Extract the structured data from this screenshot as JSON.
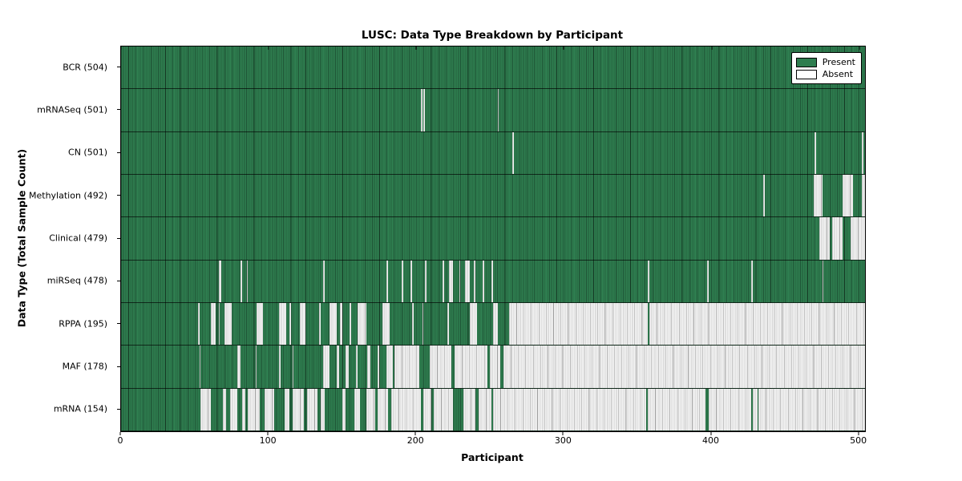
{
  "figure": {
    "title": "LUSC: Data Type Breakdown by Participant",
    "xlabel": "Participant",
    "ylabel": "Data Type (Total Sample Count)"
  },
  "legend": {
    "present_label": "Present",
    "absent_label": "Absent"
  },
  "colors": {
    "present_green": "#2e7d4f",
    "absent_fill": "#ffffff",
    "absent_stripe": "#c9c9c9",
    "frame": "#000000"
  },
  "chart_data": {
    "type": "heatmap",
    "title": "LUSC: Data Type Breakdown by Participant",
    "xlabel": "Participant",
    "ylabel": "Data Type (Total Sample Count)",
    "x_range": [
      0,
      504
    ],
    "x_ticks": [
      0,
      100,
      200,
      300,
      400,
      500
    ],
    "total_participants": 504,
    "legend": [
      {
        "label": "Present",
        "color": "#2e7d4f"
      },
      {
        "label": "Absent",
        "color": "#ffffff"
      }
    ],
    "rows": [
      {
        "name": "bcr",
        "label": "BCR (504)",
        "data_type": "BCR",
        "count": 504,
        "absent_ranges": []
      },
      {
        "name": "mrnaseq",
        "label": "mRNASeq (501)",
        "data_type": "mRNASeq",
        "count": 501,
        "absent_ranges": [
          [
            203,
            204
          ],
          [
            205,
            206
          ],
          [
            255,
            256
          ]
        ]
      },
      {
        "name": "cn",
        "label": "CN (501)",
        "data_type": "CN",
        "count": 501,
        "absent_ranges": [
          [
            265,
            266
          ],
          [
            470,
            471
          ],
          [
            502,
            503
          ]
        ]
      },
      {
        "name": "methylation",
        "label": "Methylation (492)",
        "data_type": "Methylation",
        "count": 492,
        "absent_ranges": [
          [
            435,
            436
          ],
          [
            469,
            475
          ],
          [
            489,
            496
          ],
          [
            502,
            504
          ]
        ]
      },
      {
        "name": "clinical",
        "label": "Clinical (479)",
        "data_type": "Clinical",
        "count": 479,
        "absent_ranges": [
          [
            473,
            480
          ],
          [
            482,
            489
          ],
          [
            494,
            504
          ]
        ]
      },
      {
        "name": "mirseq",
        "label": "miRSeq (478)",
        "data_type": "miRSeq",
        "count": 478,
        "absent_ranges": [
          [
            66,
            68
          ],
          [
            81,
            82
          ],
          [
            85,
            86
          ],
          [
            137,
            138
          ],
          [
            180,
            181
          ],
          [
            190,
            191
          ],
          [
            196,
            197
          ],
          [
            206,
            207
          ],
          [
            218,
            219
          ],
          [
            222,
            225
          ],
          [
            229,
            230
          ],
          [
            233,
            236
          ],
          [
            239,
            240
          ],
          [
            245,
            246
          ],
          [
            251,
            252
          ],
          [
            357,
            358
          ],
          [
            397,
            398
          ],
          [
            427,
            428
          ],
          [
            475,
            476
          ]
        ]
      },
      {
        "name": "rppa",
        "label": "RPPA (195)",
        "data_type": "RPPA",
        "count": 195,
        "absent_ranges": [
          [
            52,
            53
          ],
          [
            61,
            64
          ],
          [
            66,
            67
          ],
          [
            70,
            75
          ],
          [
            92,
            96
          ],
          [
            107,
            112
          ],
          [
            114,
            115
          ],
          [
            121,
            125
          ],
          [
            134,
            135
          ],
          [
            141,
            146
          ],
          [
            148,
            150
          ],
          [
            155,
            156
          ],
          [
            160,
            166
          ],
          [
            177,
            182
          ],
          [
            197,
            198
          ],
          [
            204,
            205
          ],
          [
            221,
            222
          ],
          [
            236,
            241
          ],
          [
            252,
            255
          ],
          [
            263,
            357
          ],
          [
            358,
            504
          ]
        ]
      },
      {
        "name": "maf",
        "label": "MAF (178)",
        "data_type": "MAF",
        "count": 178,
        "absent_ranges": [
          [
            53,
            54
          ],
          [
            79,
            81
          ],
          [
            91,
            92
          ],
          [
            107,
            108
          ],
          [
            116,
            117
          ],
          [
            137,
            141
          ],
          [
            146,
            148
          ],
          [
            152,
            154
          ],
          [
            159,
            160
          ],
          [
            167,
            169
          ],
          [
            174,
            175
          ],
          [
            180,
            184
          ],
          [
            185,
            202
          ],
          [
            209,
            224
          ],
          [
            226,
            248
          ],
          [
            250,
            257
          ],
          [
            259,
            504
          ]
        ]
      },
      {
        "name": "mrna",
        "label": "mRNA (154)",
        "data_type": "mRNA",
        "count": 154,
        "absent_ranges": [
          [
            54,
            61
          ],
          [
            69,
            71
          ],
          [
            74,
            79
          ],
          [
            82,
            84
          ],
          [
            86,
            94
          ],
          [
            97,
            104
          ],
          [
            111,
            114
          ],
          [
            116,
            124
          ],
          [
            126,
            133
          ],
          [
            135,
            138
          ],
          [
            150,
            152
          ],
          [
            158,
            162
          ],
          [
            166,
            172
          ],
          [
            174,
            181
          ],
          [
            183,
            203
          ],
          [
            205,
            210
          ],
          [
            212,
            225
          ],
          [
            232,
            240
          ],
          [
            242,
            251
          ],
          [
            252,
            356
          ],
          [
            357,
            396
          ],
          [
            398,
            427
          ],
          [
            428,
            431
          ],
          [
            432,
            504
          ]
        ]
      }
    ]
  }
}
